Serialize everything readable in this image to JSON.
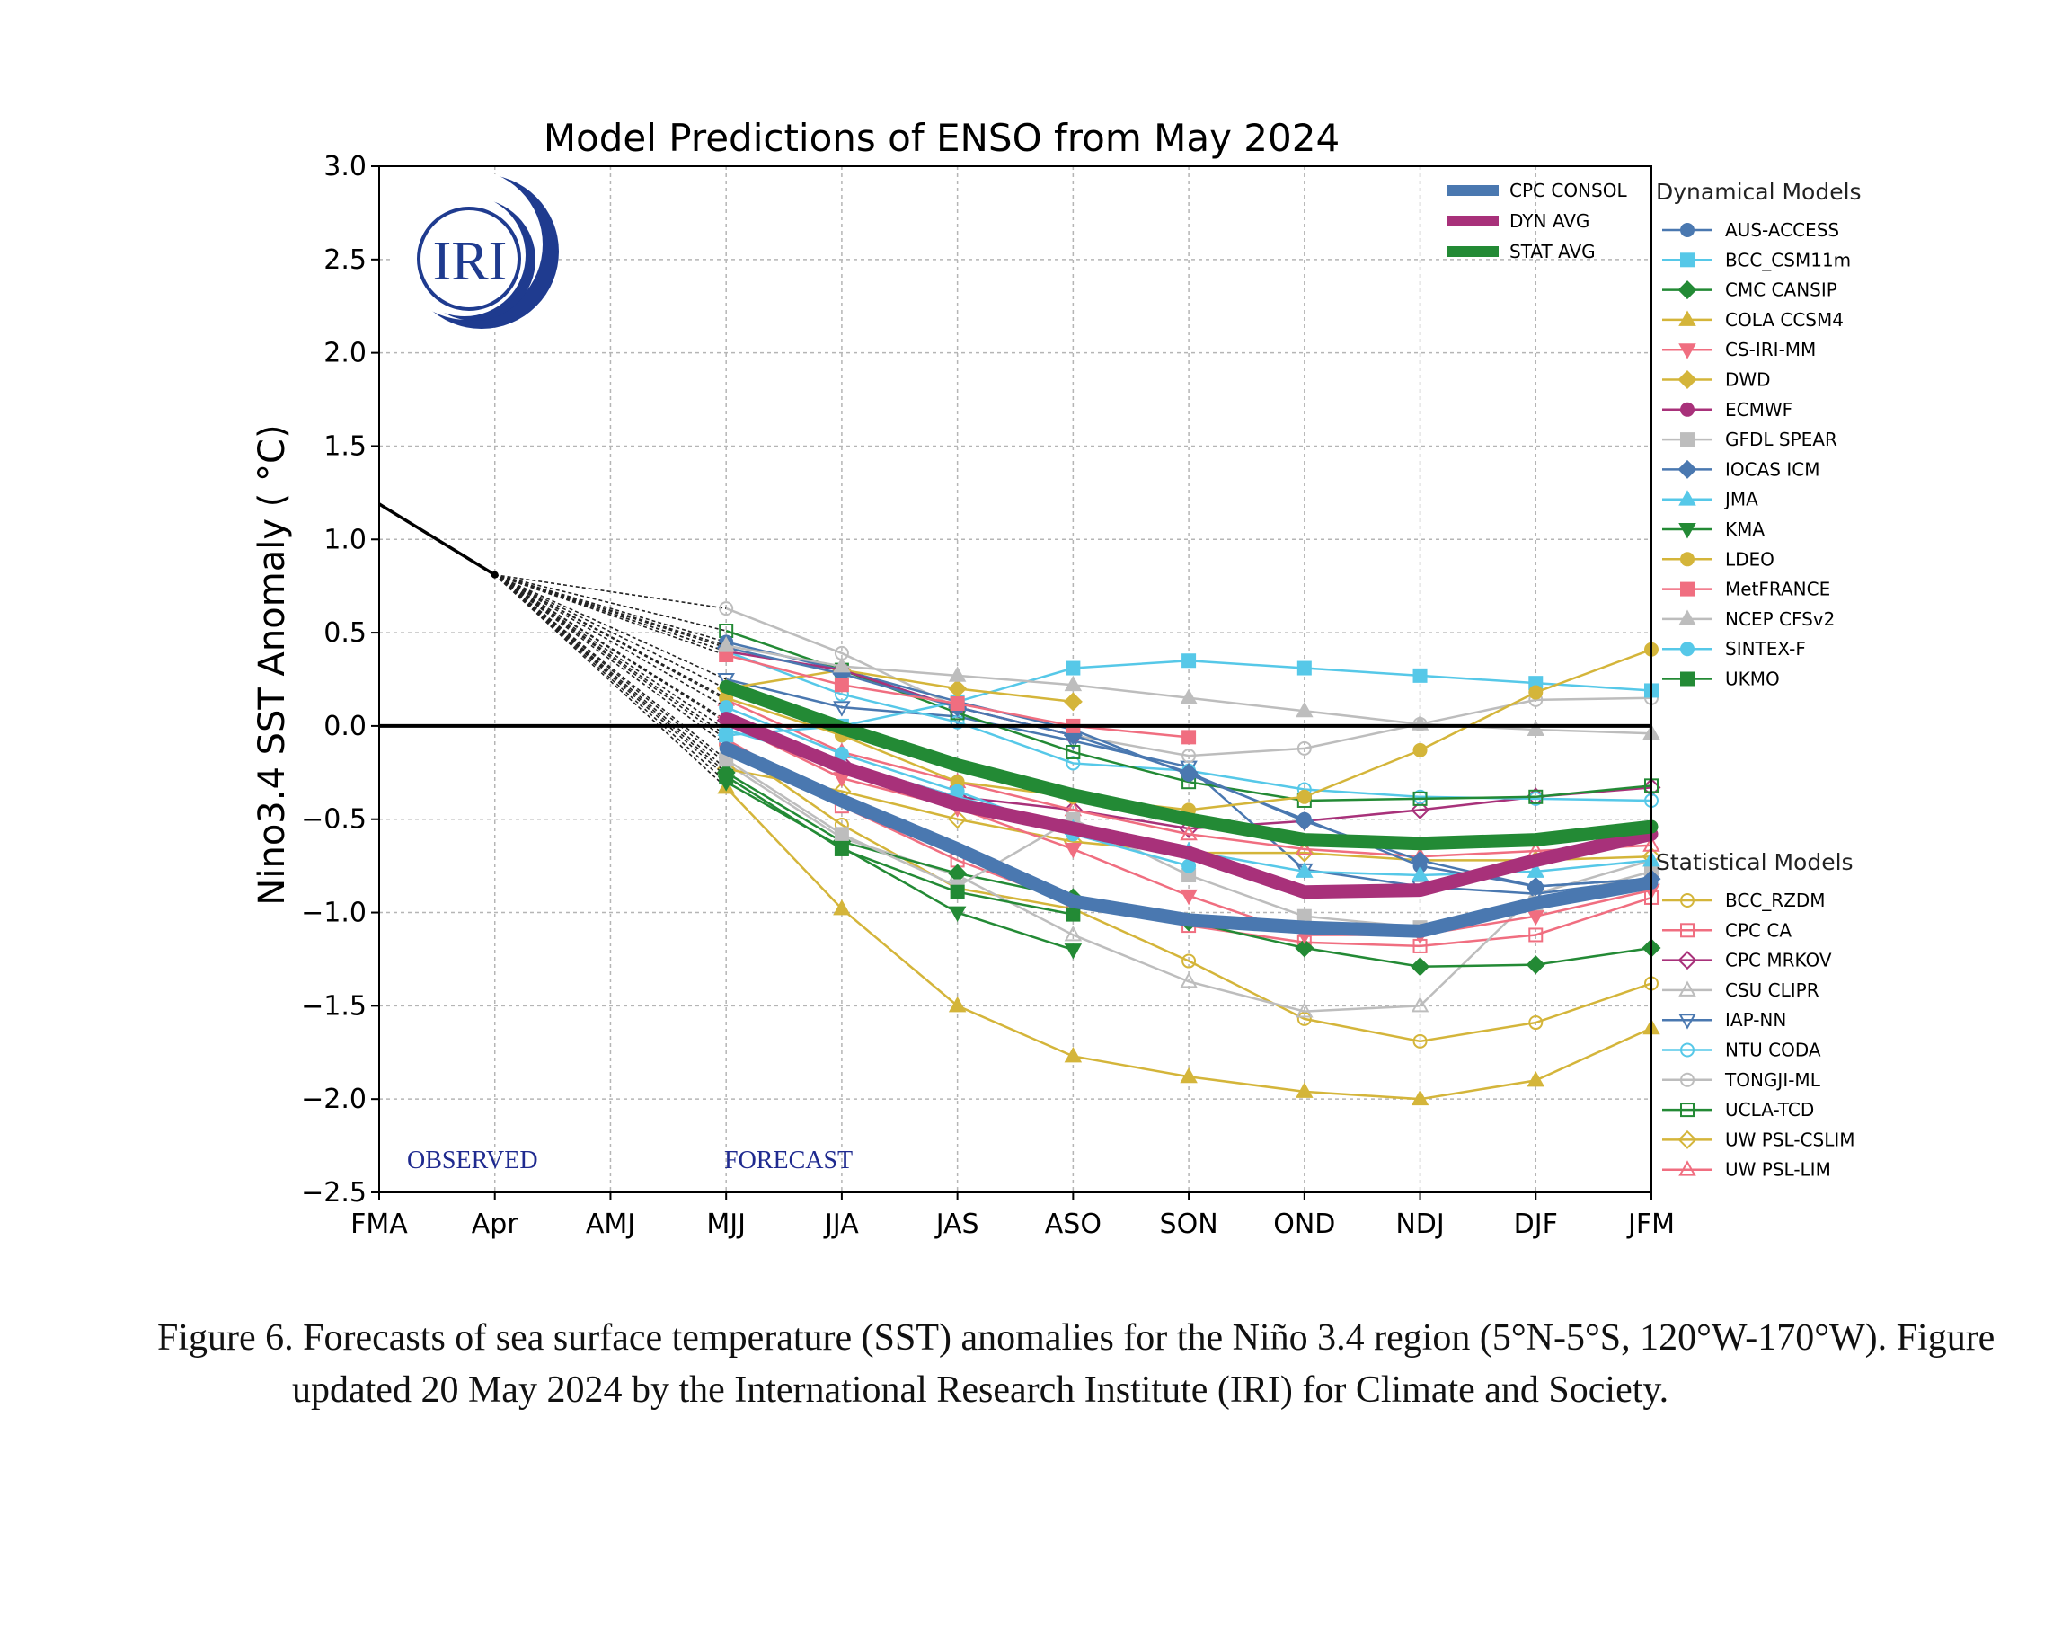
{
  "chart_data": {
    "type": "line",
    "title": "Model Predictions of ENSO from May 2024",
    "ylabel": "Nino3.4 SST Anomaly ( °C)",
    "xlabel": "",
    "categories": [
      "FMA",
      "Apr",
      "AMJ",
      "MJJ",
      "JJA",
      "JAS",
      "ASO",
      "SON",
      "OND",
      "NDJ",
      "DJF",
      "JFM"
    ],
    "ylim": [
      -2.5,
      3.0
    ],
    "yticks": [
      "3.0",
      "2.5",
      "2.0",
      "1.5",
      "1.0",
      "0.5",
      "0.0",
      "−0.5",
      "−1.0",
      "−1.5",
      "−2.0",
      "−2.5"
    ],
    "grid": true,
    "observed_label": "OBSERVED",
    "forecast_label": "FORECAST",
    "logo_text": "IRI",
    "observed": {
      "x": [
        "FMA",
        "Apr"
      ],
      "values": [
        1.19,
        0.81
      ]
    },
    "averages": [
      {
        "name": "CPC CONSOL",
        "color": "#4a78b0",
        "values": [
          -0.12,
          -0.4,
          -0.66,
          -0.94,
          -1.04,
          -1.08,
          -1.1,
          -0.95,
          -0.84
        ]
      },
      {
        "name": "DYN AVG",
        "color": "#a8317a",
        "values": [
          0.04,
          -0.22,
          -0.42,
          -0.55,
          -0.68,
          -0.89,
          -0.88,
          -0.72,
          -0.58
        ]
      },
      {
        "name": "STAT AVG",
        "color": "#238a35",
        "values": [
          0.21,
          -0.01,
          -0.21,
          -0.37,
          -0.5,
          -0.61,
          -0.63,
          -0.61,
          -0.54
        ]
      }
    ],
    "dynamical_title": "Dynamical Models",
    "dynamical_models": [
      {
        "name": "AUS-ACCESS",
        "color": "#4a78b0",
        "marker": "circle",
        "filled": true,
        "values": [
          0.45,
          0.3,
          0.13,
          -0.02,
          -0.26,
          -0.5,
          -0.75,
          -0.86,
          -0.82
        ]
      },
      {
        "name": "BCC_CSM11m",
        "color": "#56c8e8",
        "marker": "square",
        "filled": true,
        "values": [
          -0.05,
          0.0,
          0.13,
          0.31,
          0.35,
          0.31,
          0.27,
          0.23,
          0.19
        ]
      },
      {
        "name": "CMC CANSIP",
        "color": "#238a35",
        "marker": "diamond",
        "filled": true,
        "values": [
          -0.25,
          -0.62,
          -0.79,
          -0.92,
          -1.05,
          -1.19,
          -1.29,
          -1.28,
          -1.19
        ]
      },
      {
        "name": "COLA CCSM4",
        "color": "#d4b53a",
        "marker": "triangle",
        "filled": true,
        "values": [
          -0.33,
          -0.98,
          -1.5,
          -1.77,
          -1.88,
          -1.96,
          -2.0,
          -1.9,
          -1.62
        ]
      },
      {
        "name": "CS-IRI-MM",
        "color": "#f06e80",
        "marker": "triangle-down",
        "filled": true,
        "values": [
          0.02,
          -0.28,
          -0.44,
          -0.66,
          -0.91,
          -1.12,
          -1.12,
          -1.02,
          -0.88
        ]
      },
      {
        "name": "DWD",
        "color": "#d4b53a",
        "marker": "diamond",
        "filled": true,
        "values": [
          0.2,
          0.3,
          0.2,
          0.13,
          null,
          null,
          null,
          null,
          null
        ]
      },
      {
        "name": "ECMWF",
        "color": "#a8317a",
        "marker": "circle",
        "filled": true,
        "values": [
          0.4,
          0.3,
          0.1,
          -0.05,
          null,
          null,
          null,
          null,
          null
        ]
      },
      {
        "name": "GFDL SPEAR",
        "color": "#bdbdbd",
        "marker": "square",
        "filled": true,
        "values": [
          -0.18,
          -0.58,
          -0.86,
          -0.5,
          -0.8,
          -1.02,
          -1.08,
          -0.95,
          -0.78
        ]
      },
      {
        "name": "IOCAS ICM",
        "color": "#4a78b0",
        "marker": "diamond",
        "filled": true,
        "values": [
          0.42,
          0.28,
          0.1,
          -0.05,
          -0.25,
          -0.51,
          -0.72,
          -0.86,
          -0.82
        ]
      },
      {
        "name": "JMA",
        "color": "#56c8e8",
        "marker": "triangle",
        "filled": true,
        "values": [
          -0.02,
          -0.2,
          -0.38,
          -0.55,
          -0.67,
          -0.78,
          -0.8,
          -0.78,
          -0.72
        ]
      },
      {
        "name": "KMA",
        "color": "#238a35",
        "marker": "triangle-down",
        "filled": true,
        "values": [
          -0.3,
          -0.65,
          -1.0,
          -1.2,
          null,
          null,
          null,
          null,
          null
        ]
      },
      {
        "name": "LDEO",
        "color": "#d4b53a",
        "marker": "circle",
        "filled": true,
        "values": [
          0.15,
          -0.05,
          -0.3,
          -0.38,
          -0.45,
          -0.38,
          -0.13,
          0.18,
          0.41
        ]
      },
      {
        "name": "MetFRANCE",
        "color": "#f06e80",
        "marker": "square",
        "filled": true,
        "values": [
          0.38,
          0.22,
          0.12,
          0.0,
          -0.06,
          null,
          null,
          null,
          null
        ]
      },
      {
        "name": "NCEP CFSv2",
        "color": "#bdbdbd",
        "marker": "triangle",
        "filled": true,
        "values": [
          0.43,
          0.32,
          0.27,
          0.22,
          0.15,
          0.08,
          0.01,
          -0.02,
          -0.04
        ]
      },
      {
        "name": "SINTEX-F",
        "color": "#56c8e8",
        "marker": "circle",
        "filled": true,
        "values": [
          0.1,
          -0.15,
          -0.35,
          -0.58,
          -0.75,
          null,
          null,
          null,
          null
        ]
      },
      {
        "name": "UKMO",
        "color": "#238a35",
        "marker": "square",
        "filled": true,
        "values": [
          -0.27,
          -0.66,
          -0.89,
          -1.01,
          null,
          null,
          null,
          null,
          null
        ]
      }
    ],
    "statistical_title": "Statistical Models",
    "statistical_models": [
      {
        "name": "BCC_RZDM",
        "color": "#d4b53a",
        "marker": "circle",
        "filled": false,
        "values": [
          -0.1,
          -0.53,
          -0.87,
          -0.98,
          -1.26,
          -1.57,
          -1.69,
          -1.59,
          -1.38
        ]
      },
      {
        "name": "CPC CA",
        "color": "#f06e80",
        "marker": "square",
        "filled": false,
        "values": [
          -0.07,
          -0.43,
          -0.72,
          -0.95,
          -1.07,
          -1.16,
          -1.18,
          -1.12,
          -0.92
        ]
      },
      {
        "name": "CPC MRKOV",
        "color": "#a8317a",
        "marker": "diamond",
        "filled": false,
        "values": [
          0.03,
          -0.2,
          -0.38,
          -0.45,
          -0.55,
          -0.51,
          -0.45,
          -0.38,
          -0.33
        ]
      },
      {
        "name": "CSU CLIPR",
        "color": "#bdbdbd",
        "marker": "triangle",
        "filled": false,
        "values": [
          -0.2,
          -0.6,
          -0.8,
          -1.12,
          -1.37,
          -1.53,
          -1.5,
          -0.9,
          -0.72
        ]
      },
      {
        "name": "IAP-NN",
        "color": "#4a78b0",
        "marker": "triangle-down",
        "filled": false,
        "values": [
          0.25,
          0.1,
          0.05,
          -0.08,
          -0.22,
          -0.77,
          -0.86,
          -0.9,
          -0.82
        ]
      },
      {
        "name": "NTU CODA",
        "color": "#56c8e8",
        "marker": "circle",
        "filled": false,
        "values": [
          0.4,
          0.17,
          0.02,
          -0.2,
          -0.24,
          -0.34,
          -0.38,
          -0.39,
          -0.4
        ]
      },
      {
        "name": "TONGJI-ML",
        "color": "#bdbdbd",
        "marker": "circle",
        "filled": false,
        "values": [
          0.63,
          0.39,
          0.1,
          -0.05,
          -0.16,
          -0.12,
          0.01,
          0.14,
          0.15
        ]
      },
      {
        "name": "UCLA-TCD",
        "color": "#238a35",
        "marker": "square",
        "filled": false,
        "values": [
          0.51,
          0.3,
          0.07,
          -0.14,
          -0.3,
          -0.4,
          -0.39,
          -0.38,
          -0.32
        ]
      },
      {
        "name": "UW PSL-CSLIM",
        "color": "#d4b53a",
        "marker": "diamond",
        "filled": false,
        "values": [
          -0.23,
          -0.35,
          -0.5,
          -0.62,
          -0.68,
          -0.68,
          -0.72,
          -0.72,
          -0.7
        ]
      },
      {
        "name": "UW PSL-LIM",
        "color": "#f06e80",
        "marker": "triangle",
        "filled": false,
        "values": [
          0.14,
          -0.14,
          -0.3,
          -0.45,
          -0.58,
          -0.66,
          -0.7,
          -0.67,
          -0.64
        ]
      }
    ]
  },
  "caption": {
    "text": "Figure 6. Forecasts of sea surface temperature (SST) anomalies for the Niño 3.4 region (5°N-5°S, 120°W-170°W). Figure updated 20 May 2024 by the International Research Institute (IRI) for Climate and Society."
  }
}
